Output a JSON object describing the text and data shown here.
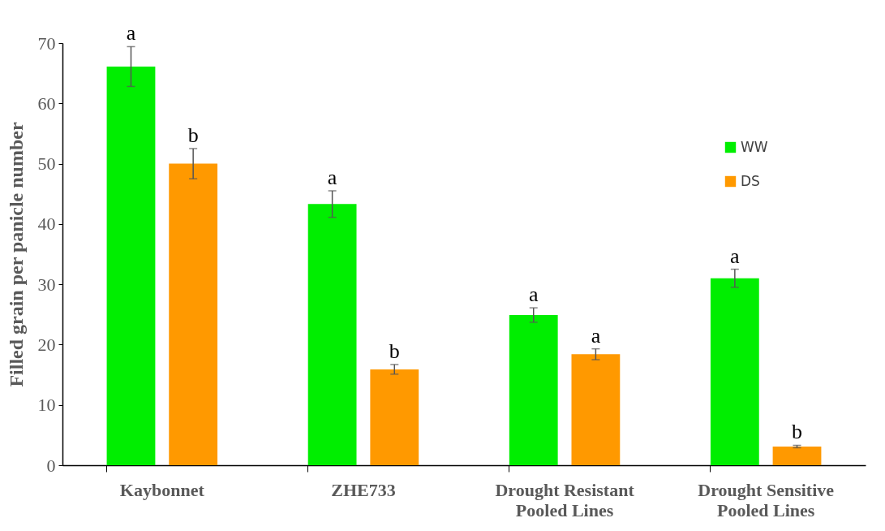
{
  "chart_data": {
    "type": "bar",
    "ylabel": "Filled grain per panicle number",
    "categories": [
      "Kaybonnet",
      "ZHE733",
      "Drought Resistant\nPooled Lines",
      "Drought Sensitive\nPooled Lines"
    ],
    "series": [
      {
        "name": "WW",
        "color": "#00ee00",
        "values": [
          66.1,
          43.3,
          24.9,
          31.0
        ],
        "errors": [
          3.3,
          2.2,
          1.2,
          1.5
        ]
      },
      {
        "name": "DS",
        "color": "#ff9900",
        "values": [
          50.0,
          15.9,
          18.4,
          3.1
        ],
        "errors": [
          2.5,
          0.8,
          0.9,
          0.2
        ]
      }
    ],
    "ylim": [
      0,
      70
    ],
    "yticks": [
      0,
      10,
      20,
      30,
      40,
      50,
      60,
      70
    ],
    "grid": false,
    "legend": "top right",
    "annotations": [
      "a",
      "b",
      "a",
      "b",
      "a",
      "a",
      "a",
      "b"
    ]
  }
}
